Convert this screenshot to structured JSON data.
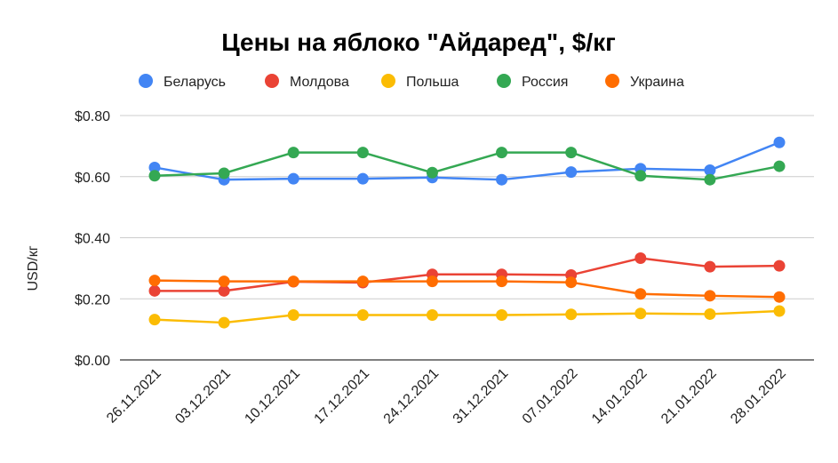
{
  "chart_data": {
    "type": "line",
    "title": "Цены на яблоко \"Айдаред\", $/кг",
    "xlabel": "",
    "ylabel": "USD/кг",
    "ylim": [
      0,
      0.8
    ],
    "yticks": [
      0,
      0.2,
      0.4,
      0.6,
      0.8
    ],
    "ytick_labels": [
      "$0.00",
      "$0.20",
      "$0.40",
      "$0.60",
      "$0.80"
    ],
    "grid": true,
    "legend_position": "top",
    "categories": [
      "26.11.2021",
      "03.12.2021",
      "10.12.2021",
      "17.12.2021",
      "24.12.2021",
      "31.12.2021",
      "07.01.2022",
      "14.01.2022",
      "21.01.2022",
      "28.01.2022"
    ],
    "series": [
      {
        "name": "Беларусь",
        "color": "#4285F4",
        "values": [
          0.63,
          0.59,
          0.593,
          0.593,
          0.597,
          0.59,
          0.615,
          0.626,
          0.621,
          0.712
        ]
      },
      {
        "name": "Молдова",
        "color": "#EA4335",
        "values": [
          0.226,
          0.226,
          0.256,
          0.253,
          0.28,
          0.28,
          0.278,
          0.333,
          0.305,
          0.308
        ]
      },
      {
        "name": "Польша",
        "color": "#FBBC04",
        "values": [
          0.132,
          0.122,
          0.147,
          0.147,
          0.147,
          0.147,
          0.149,
          0.152,
          0.15,
          0.16
        ]
      },
      {
        "name": "Россия",
        "color": "#34A853",
        "values": [
          0.603,
          0.611,
          0.679,
          0.679,
          0.613,
          0.679,
          0.679,
          0.603,
          0.59,
          0.634
        ]
      },
      {
        "name": "Украина",
        "color": "#FF6D01",
        "values": [
          0.26,
          0.257,
          0.257,
          0.257,
          0.257,
          0.257,
          0.254,
          0.216,
          0.21,
          0.206
        ]
      }
    ]
  }
}
